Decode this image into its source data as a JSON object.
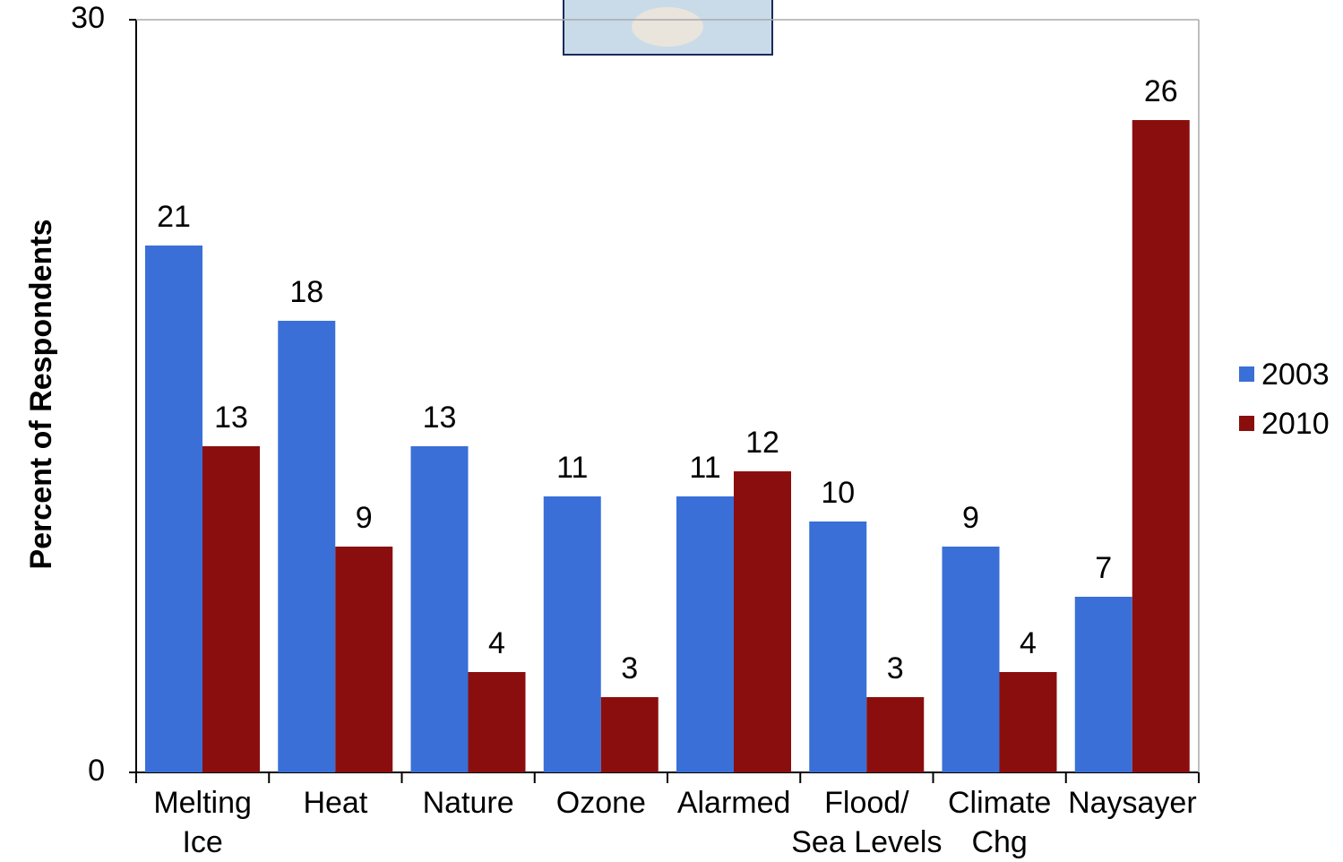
{
  "chart_data": {
    "type": "bar",
    "y_label": "Percent of Respondents",
    "categories": [
      "Melting\nIce",
      "Heat",
      "Nature",
      "Ozone",
      "Alarmed",
      "Flood/\nSea Levels",
      "Climate\nChg",
      "Naysayer"
    ],
    "series": [
      {
        "name": "2003",
        "color": "#3a6fd8",
        "values": [
          21,
          18,
          13,
          11,
          11,
          10,
          9,
          7
        ]
      },
      {
        "name": "2010",
        "color": "#8b0e0e",
        "values": [
          13,
          9,
          4,
          3,
          12,
          3,
          4,
          26
        ]
      }
    ],
    "ylim": [
      0,
      30
    ],
    "yticks": [
      0,
      30
    ],
    "grid": false,
    "legend": "right"
  }
}
